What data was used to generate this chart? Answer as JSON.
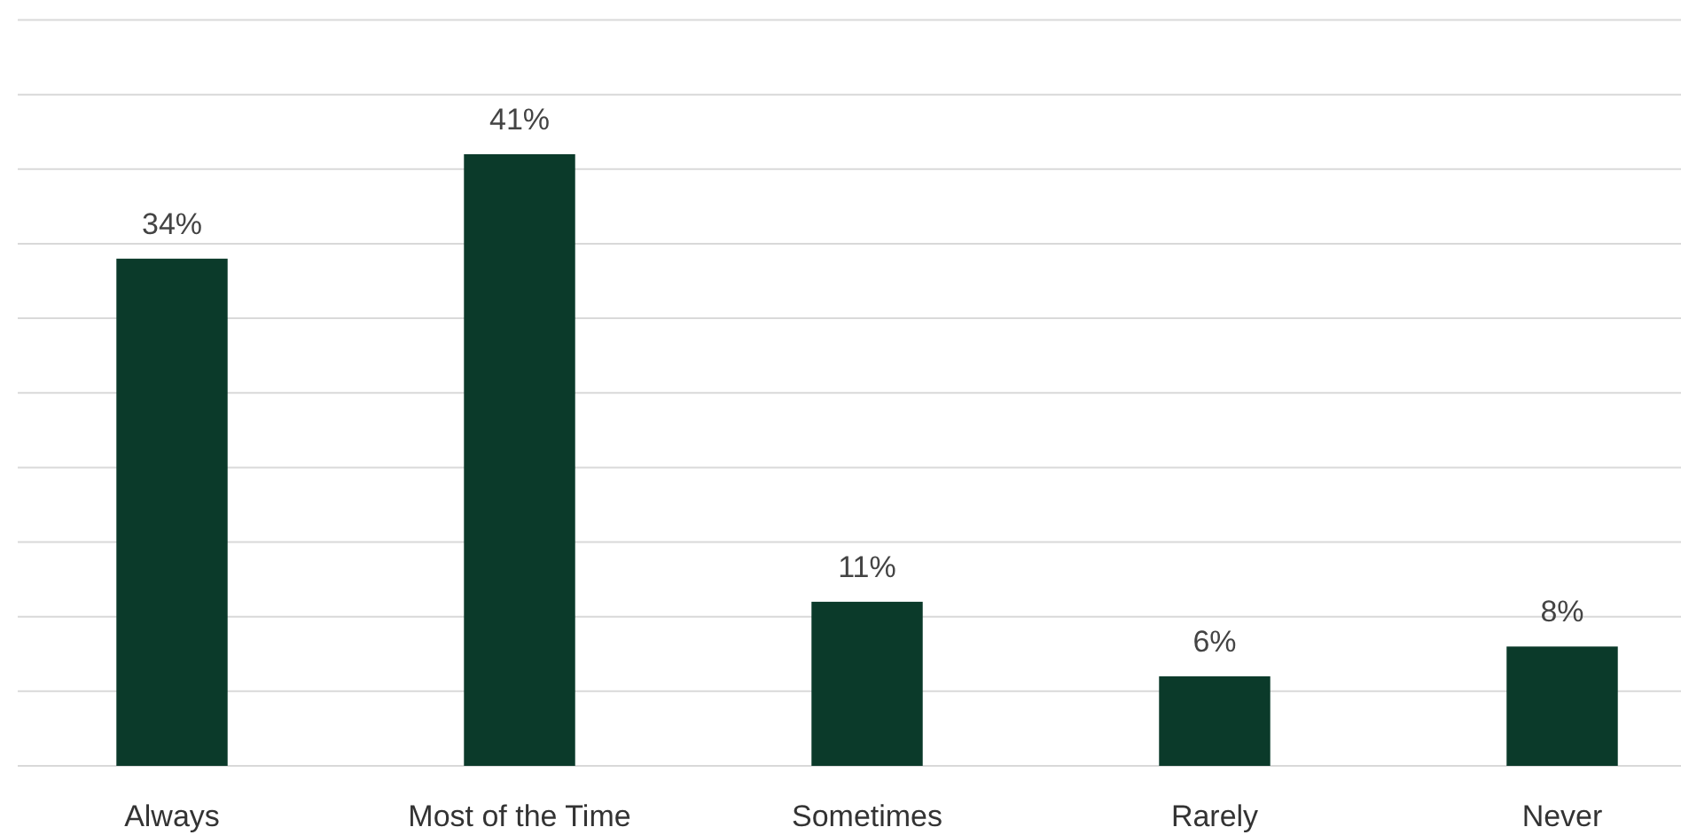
{
  "chart_data": {
    "type": "bar",
    "categories": [
      "Always",
      "Most of the Time",
      "Sometimes",
      "Rarely",
      "Never"
    ],
    "values": [
      34,
      41,
      11,
      6,
      8
    ],
    "value_labels": [
      "34%",
      "41%",
      "11%",
      "6%",
      "8%"
    ],
    "color": "#0b3a2a",
    "grid": "y",
    "tick_labels": "x"
  }
}
